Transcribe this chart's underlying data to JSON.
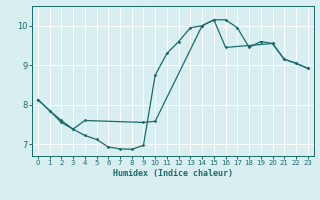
{
  "xlabel": "Humidex (Indice chaleur)",
  "ylabel": "",
  "bg_color": "#d8eef0",
  "grid_color": "#ffffff",
  "line_color": "#1a6b6b",
  "xlim": [
    -0.5,
    23.5
  ],
  "ylim": [
    6.7,
    10.5
  ],
  "xticks": [
    0,
    1,
    2,
    3,
    4,
    5,
    6,
    7,
    8,
    9,
    10,
    11,
    12,
    13,
    14,
    15,
    16,
    17,
    18,
    19,
    20,
    21,
    22,
    23
  ],
  "yticks": [
    7,
    8,
    9,
    10
  ],
  "line1_x": [
    0,
    1,
    2,
    3,
    4,
    5,
    6,
    7,
    8,
    9,
    10,
    11,
    12,
    13,
    14,
    15,
    16,
    17,
    18,
    19,
    20,
    21,
    22,
    23
  ],
  "line1_y": [
    8.13,
    7.85,
    7.55,
    7.38,
    7.22,
    7.12,
    6.93,
    6.88,
    6.87,
    6.97,
    8.75,
    9.3,
    9.6,
    9.95,
    10.0,
    10.15,
    10.15,
    9.95,
    9.45,
    9.6,
    9.55,
    9.15,
    9.05,
    8.92
  ],
  "line2_x": [
    0,
    1,
    2,
    3,
    4,
    9,
    10,
    14,
    15,
    16,
    20,
    21,
    22,
    23
  ],
  "line2_y": [
    8.13,
    7.85,
    7.6,
    7.38,
    7.6,
    7.55,
    7.58,
    10.0,
    10.15,
    9.45,
    9.55,
    9.15,
    9.05,
    8.92
  ],
  "xlabel_fontsize": 6.0,
  "tick_fontsize": 5.0
}
